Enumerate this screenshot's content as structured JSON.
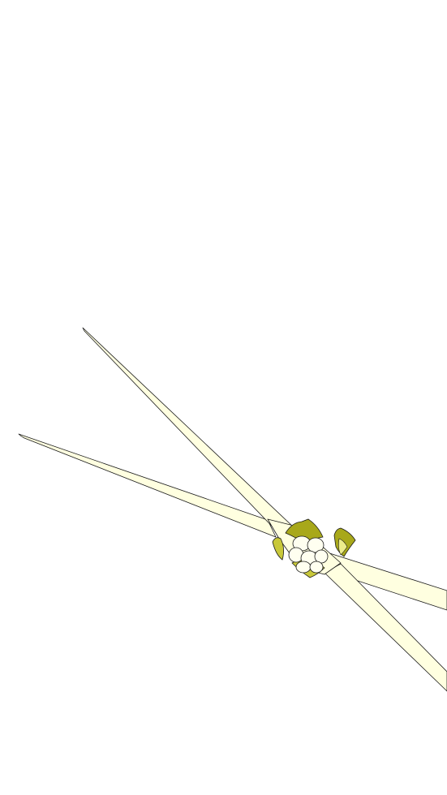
{
  "illustration": {
    "subject": "crossed-spiky-shapes",
    "colors": {
      "background": "#ffffff",
      "spike_fill": "#ffffe0",
      "outline": "#1a1a1a",
      "olive_dark": "#a8a81a",
      "olive_mid": "#c8c83a",
      "olive_light": "#ecec8a",
      "cream": "#fffff0"
    }
  }
}
